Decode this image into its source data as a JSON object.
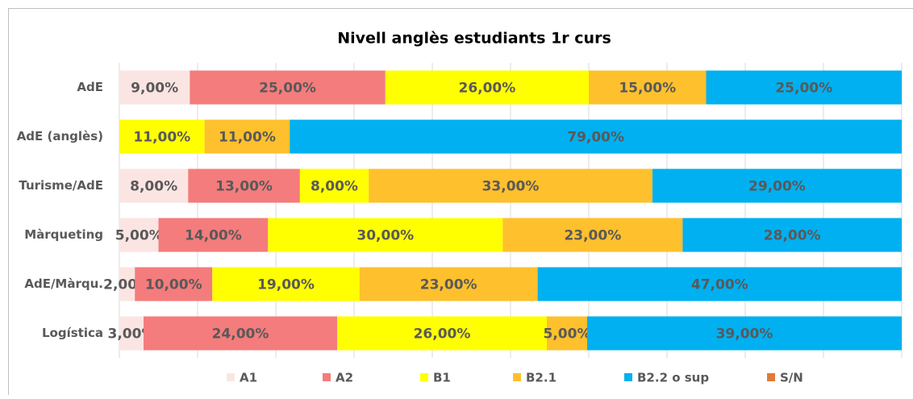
{
  "chart_data": {
    "type": "bar",
    "orientation": "horizontal",
    "stack": "percent",
    "title": "Nivell anglès estudiants 1r curs",
    "categories": [
      "AdE",
      "AdE (anglès)",
      "Turisme/AdE",
      "Màrqueting",
      "AdE/Màrqu.",
      "Logística"
    ],
    "series": [
      {
        "name": "A1",
        "color": "#fbe5e3",
        "values": [
          9,
          null,
          8,
          5,
          2,
          3
        ],
        "value_labels": [
          "9,00%",
          null,
          "8,00%",
          "5,00%",
          "2,00%",
          "3,00%"
        ]
      },
      {
        "name": "A2",
        "color": "#f47c7c",
        "values": [
          25,
          null,
          13,
          14,
          10,
          24
        ],
        "value_labels": [
          "25,00%",
          null,
          "13,00%",
          "14,00%",
          "10,00%",
          "24,00%"
        ]
      },
      {
        "name": "B1",
        "color": "#ffff00",
        "values": [
          26,
          11,
          8,
          30,
          19,
          26
        ],
        "value_labels": [
          "26,00%",
          "11,00%",
          "8,00%",
          "30,00%",
          "19,00%",
          "26,00%"
        ]
      },
      {
        "name": "B2.1",
        "color": "#fec02d",
        "values": [
          15,
          11,
          33,
          23,
          23,
          5
        ],
        "value_labels": [
          "15,00%",
          "11,00%",
          "33,00%",
          "23,00%",
          "23,00%",
          "5,00%"
        ]
      },
      {
        "name": "B2.2 o sup",
        "color": "#00b0f0",
        "values": [
          25,
          79,
          29,
          28,
          47,
          39
        ],
        "value_labels": [
          "25,00%",
          "79,00%",
          "29,00%",
          "28,00%",
          "47,00%",
          "39,00%"
        ]
      },
      {
        "name": "S/N",
        "color": "#e07b39",
        "values": [
          null,
          null,
          null,
          null,
          null,
          null
        ]
      }
    ],
    "xlim": [
      0,
      100
    ],
    "xticks": [
      0,
      10,
      20,
      30,
      40,
      50,
      60,
      70,
      80,
      90,
      100
    ],
    "grid": true,
    "legend": "bottom"
  }
}
